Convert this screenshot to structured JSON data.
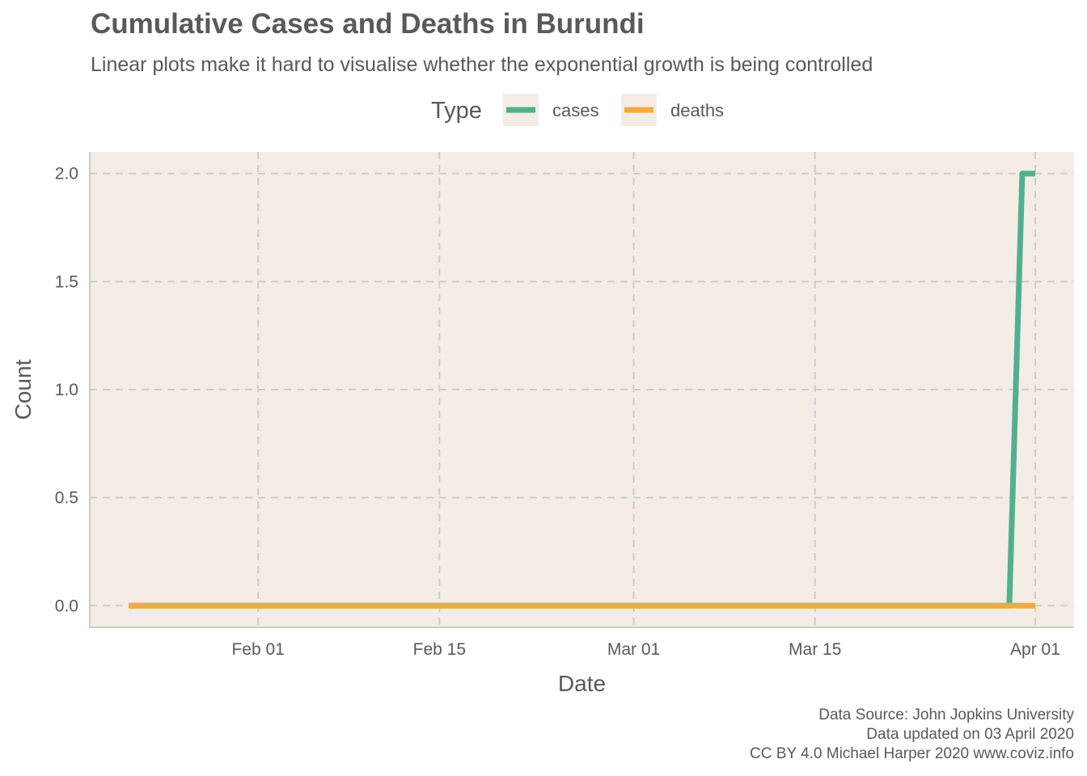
{
  "title": "Cumulative Cases and Deaths in Burundi",
  "subtitle": "Linear plots make it hard to visualise whether the exponential growth is being controlled",
  "caption": {
    "line1": "Data Source: John Jopkins University",
    "line2": "Data updated on 03 April 2020",
    "line3": "CC BY 4.0 Michael Harper 2020 www.coviz.info"
  },
  "chart_data": {
    "type": "line",
    "xlabel": "Date",
    "ylabel": "Count",
    "xlim": [
      "2020-01-19",
      "2020-04-04"
    ],
    "ylim": [
      -0.1,
      2.1
    ],
    "x_ticks": [
      {
        "date": "2020-02-01",
        "label": "Feb 01"
      },
      {
        "date": "2020-02-15",
        "label": "Feb 15"
      },
      {
        "date": "2020-03-01",
        "label": "Mar 01"
      },
      {
        "date": "2020-03-15",
        "label": "Mar 15"
      },
      {
        "date": "2020-04-01",
        "label": "Apr 01"
      }
    ],
    "y_ticks": [
      0.0,
      0.5,
      1.0,
      1.5,
      2.0
    ],
    "y_tick_labels": [
      "0.0",
      "0.5",
      "1.0",
      "1.5",
      "2.0"
    ],
    "grid": true,
    "legend": {
      "title": "Type",
      "position": "top"
    },
    "series": [
      {
        "name": "cases",
        "color": "#52b08f",
        "points": [
          [
            "2020-01-22",
            0
          ],
          [
            "2020-03-30",
            0
          ],
          [
            "2020-03-31",
            2
          ],
          [
            "2020-04-01",
            2
          ]
        ]
      },
      {
        "name": "deaths",
        "color": "#f7a93c",
        "points": [
          [
            "2020-01-22",
            0
          ],
          [
            "2020-04-01",
            0
          ]
        ]
      }
    ]
  },
  "colors": {
    "panel_background": "#f3ede6",
    "grid": "#cccccc",
    "text": "#595959"
  }
}
